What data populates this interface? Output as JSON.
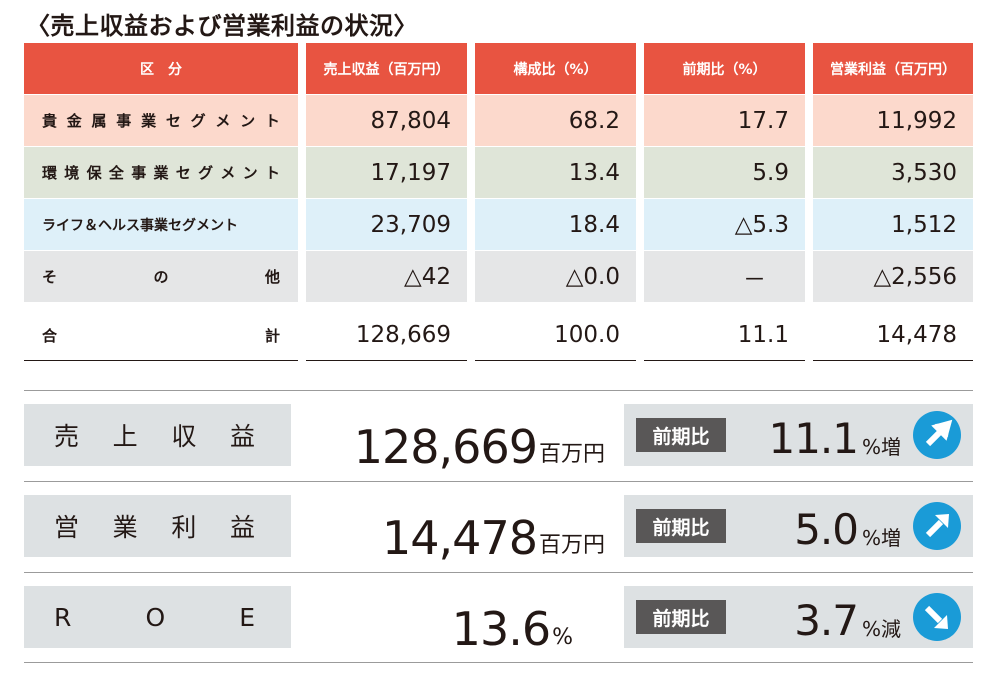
{
  "title": "〈売上収益および営業利益の状況〉",
  "table": {
    "headers": [
      "区　分",
      "売上収益（百万円）",
      "構成比（%）",
      "前期比（%）",
      "営業利益（百万円）"
    ],
    "rows": [
      {
        "segment": "貴金属事業セグメント",
        "revenue": "87,804",
        "share": "68.2",
        "yoy": "17.7",
        "profit": "11,992"
      },
      {
        "segment": "環境保全事業セグメント",
        "revenue": "17,197",
        "share": "13.4",
        "yoy": "5.9",
        "profit": "3,530"
      },
      {
        "segment": "ライフ＆ヘルス事業セグメント",
        "revenue": "23,709",
        "share": "18.4",
        "yoy": "△5.3",
        "profit": "1,512"
      },
      {
        "segment": "その他",
        "revenue": "△42",
        "share": "△0.0",
        "yoy": "－",
        "profit": "△2,556"
      }
    ],
    "total": {
      "segment": "合計",
      "revenue": "128,669",
      "share": "100.0",
      "yoy": "11.1",
      "profit": "14,478"
    }
  },
  "summary": [
    {
      "label": "売上収益",
      "value": "128,669",
      "unit": "百万円",
      "badge": "前期比",
      "change": "11.1",
      "change_unit": "%増",
      "direction": "up-icon"
    },
    {
      "label": "営業利益",
      "value": "14,478",
      "unit": "百万円",
      "badge": "前期比",
      "change": "5.0",
      "change_unit": "%増",
      "direction": "up-icon"
    },
    {
      "label": "ROE",
      "value": "13.6",
      "unit": "%",
      "badge": "前期比",
      "change": "3.7",
      "change_unit": "%減",
      "direction": "down-icon"
    }
  ],
  "colors": {
    "header": "#e85441",
    "precious_metals_row": "#fcd9cc",
    "environment_row": "#dfe5d8",
    "life_health_row": "#def0f9",
    "other_row": "#e5e6e7",
    "arrow": "#1a9bd7",
    "badge": "#595757"
  }
}
